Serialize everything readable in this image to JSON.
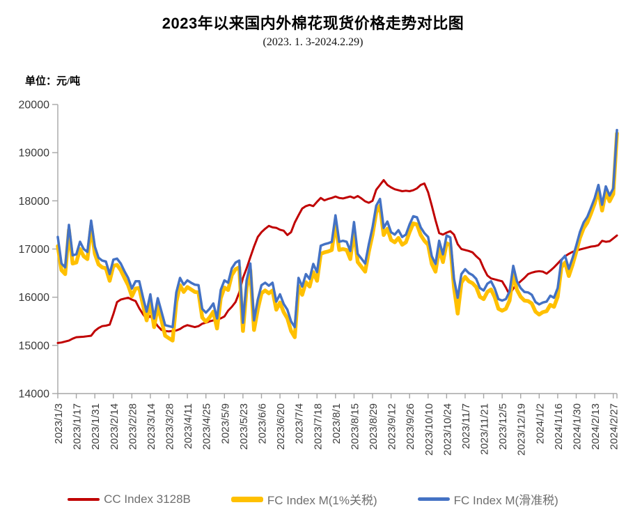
{
  "header": {
    "title": "2023年以来国内外棉花现货价格走势对比图",
    "subtitle": "(2023. 1. 3-2024.2.29)",
    "unit_label": "单位：元/吨"
  },
  "colors": {
    "background": "#FFFFFF",
    "axis": "#A6A6A6",
    "tick_labels": "#3A3A3A",
    "legend_text": "#6F6F6F",
    "cc_index_red": "#C00000",
    "fc_tariff_yellow": "#FFC000",
    "fc_sliding_blue": "#4472C4"
  },
  "chart_data": {
    "type": "line",
    "title": "2023年以来国内外棉花现货价格走势对比图",
    "subtitle": "(2023. 1. 3-2024.2.29)",
    "ylabel": "单位：元/吨",
    "grid": false,
    "legend_position": "bottom",
    "y_axis": {
      "min": 14000,
      "max": 20000,
      "tick_step": 1000,
      "ticks": [
        14000,
        15000,
        16000,
        17000,
        18000,
        19000,
        20000
      ]
    },
    "x_axis": {
      "total_days": 302,
      "tick_interval_days": 10,
      "tick_labels": [
        "2023/1/3",
        "2023/1/17",
        "2023/1/31",
        "2023/2/14",
        "2023/2/28",
        "2023/3/14",
        "2023/3/28",
        "2023/4/11",
        "2023/4/25",
        "2023/5/9",
        "2023/5/23",
        "2023/6/6",
        "2023/6/20",
        "2023/7/4",
        "2023/7/18",
        "2023/8/1",
        "2023/8/15",
        "2023/8/29",
        "2023/9/12",
        "2023/9/26",
        "2023/10/10",
        "2023/10/24",
        "2023/11/7",
        "2023/11/21",
        "2023/12/5",
        "2023/12/19",
        "2024/1/2",
        "2024/1/16",
        "2024/1/30",
        "2024/2/13",
        "2024/2/27"
      ]
    },
    "sample_step_days": 2,
    "series": [
      {
        "name": "CC Index 3128B",
        "color": "#C00000",
        "width": 3,
        "legend_thickness": 4,
        "values": [
          15050,
          15060,
          15080,
          15100,
          15140,
          15170,
          15175,
          15180,
          15190,
          15200,
          15300,
          15360,
          15400,
          15410,
          15430,
          15650,
          15900,
          15950,
          15970,
          15990,
          15950,
          15920,
          15770,
          15650,
          15550,
          15610,
          15500,
          15400,
          15320,
          15300,
          15290,
          15300,
          15310,
          15340,
          15390,
          15420,
          15400,
          15380,
          15400,
          15450,
          15470,
          15500,
          15520,
          15540,
          15560,
          15600,
          15720,
          15800,
          15900,
          16100,
          16400,
          16600,
          16830,
          17050,
          17250,
          17350,
          17420,
          17480,
          17450,
          17440,
          17400,
          17380,
          17290,
          17350,
          17550,
          17700,
          17840,
          17890,
          17915,
          17890,
          17980,
          18060,
          18010,
          18040,
          18060,
          18090,
          18060,
          18050,
          18070,
          18090,
          18060,
          18100,
          18050,
          17990,
          17960,
          18000,
          18230,
          18330,
          18430,
          18330,
          18280,
          18240,
          18220,
          18200,
          18210,
          18200,
          18220,
          18260,
          18330,
          18360,
          18180,
          17900,
          17600,
          17330,
          17300,
          17340,
          17370,
          17300,
          17100,
          17000,
          16980,
          16960,
          16930,
          16850,
          16780,
          16600,
          16450,
          16390,
          16370,
          16350,
          16330,
          16200,
          16050,
          16180,
          16260,
          16330,
          16400,
          16480,
          16510,
          16530,
          16540,
          16530,
          16490,
          16550,
          16620,
          16700,
          16780,
          16850,
          16900,
          16940,
          16970,
          16990,
          17010,
          17030,
          17050,
          17060,
          17080,
          17170,
          17150,
          17160,
          17220,
          17280
        ]
      },
      {
        "name": "FC Index M(1%关税)",
        "color": "#FFC000",
        "width": 5.5,
        "legend_thickness": 8,
        "values": [
          17060,
          16560,
          16480,
          17400,
          16700,
          16720,
          17000,
          16850,
          16790,
          17480,
          16900,
          16680,
          16620,
          16600,
          16340,
          16650,
          16670,
          16560,
          16400,
          16250,
          16020,
          16180,
          16190,
          15840,
          15520,
          15900,
          15380,
          15820,
          15520,
          15200,
          15150,
          15100,
          15900,
          16250,
          16110,
          16210,
          16160,
          16110,
          16100,
          15580,
          15490,
          15580,
          15700,
          15350,
          15980,
          16200,
          16150,
          16460,
          16580,
          16620,
          15300,
          16200,
          16560,
          15320,
          15750,
          16080,
          16140,
          16080,
          16140,
          15740,
          15890,
          15690,
          15560,
          15300,
          15170,
          16230,
          16050,
          16310,
          16220,
          16520,
          16340,
          16900,
          16930,
          16950,
          16980,
          17540,
          16980,
          17000,
          16980,
          16790,
          17390,
          16730,
          16630,
          16530,
          16950,
          17300,
          17760,
          17900,
          17290,
          17420,
          17190,
          17140,
          17230,
          17090,
          17140,
          17350,
          17530,
          17510,
          17290,
          17170,
          17090,
          16690,
          16530,
          17010,
          16730,
          17120,
          17080,
          16200,
          15660,
          16300,
          16420,
          16330,
          16290,
          16210,
          16010,
          15960,
          16110,
          16160,
          16000,
          15760,
          15720,
          15760,
          15930,
          16480,
          16150,
          16010,
          15930,
          15920,
          15870,
          15700,
          15640,
          15690,
          15710,
          15840,
          15800,
          16010,
          16620,
          16720,
          16440,
          16670,
          16940,
          17230,
          17430,
          17550,
          17740,
          17950,
          18220,
          17800,
          18190,
          17990,
          18140,
          19400
        ]
      },
      {
        "name": "FC Index M(滑准税)",
        "color": "#4472C4",
        "width": 3.5,
        "legend_thickness": 5,
        "values": [
          17250,
          16700,
          16620,
          17500,
          16870,
          16890,
          17150,
          17000,
          16940,
          17590,
          17050,
          16820,
          16760,
          16740,
          16480,
          16780,
          16800,
          16700,
          16540,
          16400,
          16180,
          16330,
          16330,
          16000,
          15700,
          16060,
          15560,
          15980,
          15700,
          15420,
          15400,
          15380,
          16100,
          16400,
          16260,
          16350,
          16300,
          16260,
          16250,
          15760,
          15680,
          15760,
          15870,
          15560,
          16150,
          16350,
          16300,
          16600,
          16720,
          16760,
          15470,
          16350,
          16700,
          15520,
          15950,
          16250,
          16300,
          16240,
          16300,
          15910,
          16060,
          15860,
          15740,
          15500,
          15380,
          16400,
          16220,
          16480,
          16380,
          16690,
          16520,
          17070,
          17100,
          17120,
          17150,
          17700,
          17150,
          17170,
          17150,
          16960,
          17560,
          16900,
          16800,
          16700,
          17100,
          17450,
          17900,
          18040,
          17440,
          17570,
          17350,
          17300,
          17390,
          17250,
          17300,
          17510,
          17680,
          17660,
          17450,
          17330,
          17250,
          16850,
          16690,
          17170,
          16890,
          17280,
          17240,
          16380,
          15990,
          16480,
          16580,
          16500,
          16460,
          16380,
          16190,
          16140,
          16280,
          16330,
          16180,
          15960,
          15930,
          15960,
          16120,
          16650,
          16330,
          16190,
          16110,
          16100,
          16050,
          15900,
          15850,
          15890,
          15910,
          16030,
          15990,
          16190,
          16770,
          16860,
          16590,
          16810,
          17070,
          17350,
          17550,
          17670,
          17860,
          18060,
          18330,
          17920,
          18300,
          18110,
          18260,
          19470
        ]
      }
    ]
  }
}
